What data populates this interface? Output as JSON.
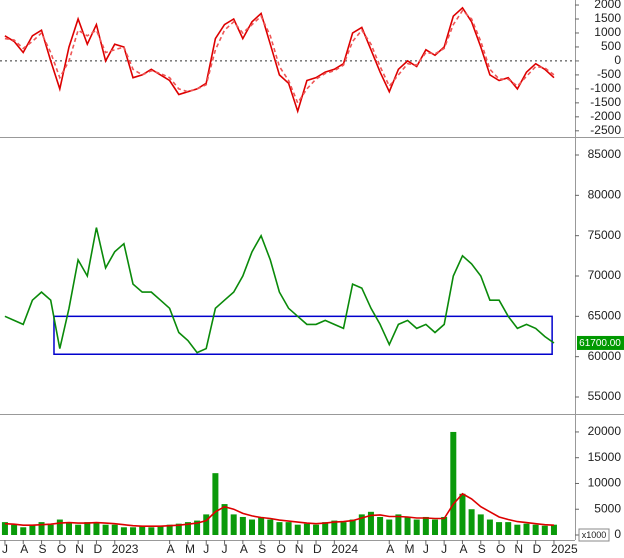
{
  "chart_data": [
    {
      "type": "line",
      "x": [
        0,
        0.5,
        1,
        1.5,
        2,
        2.5,
        3,
        3.5,
        4,
        4.5,
        5,
        5.5,
        6,
        6.5,
        7,
        7.5,
        8,
        8.5,
        9,
        9.5,
        10,
        10.5,
        11,
        11.5,
        12,
        12.5,
        13,
        13.5,
        14,
        14.5,
        15,
        15.5,
        16,
        16.5,
        17,
        17.5,
        18,
        18.5,
        19,
        19.5,
        20,
        20.5,
        21,
        21.5,
        22,
        22.5,
        23,
        23.5,
        24,
        24.5,
        25,
        25.5,
        26,
        26.5,
        27,
        27.5,
        28,
        28.5,
        29,
        29.5,
        30
      ],
      "xlim": [
        -0.27,
        31.15
      ],
      "ylim": [
        -2650,
        2180
      ],
      "yticks": [
        2000,
        1500,
        1000,
        500,
        0,
        -500,
        -1000,
        -1500,
        -2000,
        -2500
      ],
      "reference_line": 0,
      "series": [
        {
          "color": "#dd0000",
          "values": [
            900,
            700,
            300,
            900,
            1100,
            0,
            -1000,
            500,
            1500,
            600,
            1300,
            0,
            600,
            500,
            -600,
            -500,
            -300,
            -500,
            -700,
            -1200,
            -1100,
            -1000,
            -800,
            800,
            1300,
            1500,
            800,
            1400,
            1700,
            600,
            -500,
            -800,
            -1800,
            -700,
            -600,
            -400,
            -300,
            -100,
            1000,
            1200,
            400,
            -400,
            -1100,
            -300,
            0,
            -200,
            400,
            200,
            500,
            1600,
            1900,
            1400,
            500,
            -500,
            -700,
            -600,
            -1000,
            -400,
            -100,
            -300,
            -600
          ]
        },
        {
          "color": "#ee5555",
          "dashed": true,
          "values": [
            800,
            750,
            450,
            700,
            1000,
            300,
            -600,
            0,
            1100,
            900,
            1100,
            300,
            400,
            500,
            -300,
            -500,
            -350,
            -450,
            -600,
            -1000,
            -1100,
            -1000,
            -850,
            400,
            1100,
            1400,
            1000,
            1300,
            1600,
            900,
            -200,
            -700,
            -1500,
            -1000,
            -650,
            -450,
            -350,
            -150,
            700,
            1100,
            600,
            -200,
            -900,
            -500,
            -100,
            -150,
            300,
            250,
            450,
            1300,
            1800,
            1500,
            700,
            -300,
            -650,
            -650,
            -900,
            -550,
            -200,
            -250,
            -500
          ]
        }
      ]
    },
    {
      "type": "line",
      "x": [
        0,
        0.5,
        1,
        1.5,
        2,
        2.5,
        3,
        3.5,
        4,
        4.5,
        5,
        5.5,
        6,
        6.5,
        7,
        7.5,
        8,
        8.5,
        9,
        9.5,
        10,
        10.5,
        11,
        11.5,
        12,
        12.5,
        13,
        13.5,
        14,
        14.5,
        15,
        15.5,
        16,
        16.5,
        17,
        17.5,
        18,
        18.5,
        19,
        19.5,
        20,
        20.5,
        21,
        21.5,
        22,
        22.5,
        23,
        23.5,
        24,
        24.5,
        25,
        25.5,
        26,
        26.5,
        27,
        27.5,
        28,
        28.5,
        29,
        29.5,
        30
      ],
      "xlim": [
        -0.27,
        31.15
      ],
      "ylim": [
        53140,
        86860
      ],
      "yticks": [
        85000,
        80000,
        75000,
        70000,
        65000,
        60000,
        55000
      ],
      "series": [
        {
          "color": "#0a8a0a",
          "values": [
            65000,
            64500,
            64000,
            67000,
            68000,
            67000,
            61000,
            66000,
            72000,
            70000,
            76000,
            71000,
            73000,
            74000,
            69000,
            68000,
            68000,
            67000,
            66000,
            63000,
            62000,
            60500,
            61000,
            66000,
            67000,
            68000,
            70000,
            73000,
            75000,
            72000,
            68000,
            66000,
            65000,
            64000,
            64000,
            64500,
            64000,
            63500,
            69000,
            68500,
            66000,
            64000,
            61500,
            64000,
            64500,
            63500,
            64000,
            63000,
            64000,
            70000,
            72500,
            71500,
            70000,
            67000,
            67000,
            65000,
            63500,
            64000,
            63500,
            62500,
            61700
          ]
        }
      ],
      "box": {
        "x": [
          2.68,
          29.9
        ],
        "y": [
          60300,
          65000
        ],
        "color": "#0000cc"
      },
      "last_price": {
        "value": 61700,
        "label": "61700.00",
        "color": "#009900"
      }
    },
    {
      "type": "bar",
      "x": [
        0,
        0.5,
        1,
        1.5,
        2,
        2.5,
        3,
        3.5,
        4,
        4.5,
        5,
        5.5,
        6,
        6.5,
        7,
        7.5,
        8,
        8.5,
        9,
        9.5,
        10,
        10.5,
        11,
        11.5,
        12,
        12.5,
        13,
        13.5,
        14,
        14.5,
        15,
        15.5,
        16,
        16.5,
        17,
        17.5,
        18,
        18.5,
        19,
        19.5,
        20,
        20.5,
        21,
        21.5,
        22,
        22.5,
        23,
        23.5,
        24,
        24.5,
        25,
        25.5,
        26,
        26.5,
        27,
        27.5,
        28,
        28.5,
        29,
        29.5,
        30
      ],
      "xlim": [
        -0.27,
        31.15
      ],
      "xticks": [
        {
          "value": 0,
          "label": "J"
        },
        {
          "value": 1,
          "label": "A"
        },
        {
          "value": 2,
          "label": "S"
        },
        {
          "value": 3,
          "label": "O"
        },
        {
          "value": 4,
          "label": "N"
        },
        {
          "value": 5,
          "label": "D"
        },
        {
          "value": 6,
          "label": "2023"
        },
        {
          "value": 9,
          "label": "A"
        },
        {
          "value": 10,
          "label": "M"
        },
        {
          "value": 11,
          "label": "J"
        },
        {
          "value": 12,
          "label": "J"
        },
        {
          "value": 13,
          "label": "A"
        },
        {
          "value": 14,
          "label": "S"
        },
        {
          "value": 15,
          "label": "O"
        },
        {
          "value": 16,
          "label": "N"
        },
        {
          "value": 17,
          "label": "D"
        },
        {
          "value": 18,
          "label": "2024"
        },
        {
          "value": 21,
          "label": "A"
        },
        {
          "value": 22,
          "label": "M"
        },
        {
          "value": 23,
          "label": "J"
        },
        {
          "value": 24,
          "label": "J"
        },
        {
          "value": 25,
          "label": "A"
        },
        {
          "value": 26,
          "label": "S"
        },
        {
          "value": 27,
          "label": "O"
        },
        {
          "value": 28,
          "label": "N"
        },
        {
          "value": 29,
          "label": "D"
        },
        {
          "value": 30,
          "label": "2025"
        }
      ],
      "ylim": [
        -970,
        22900
      ],
      "yticks": [
        20000,
        15000,
        10000,
        5000,
        0
      ],
      "unit_label": "x1000",
      "series": [
        {
          "type": "bar",
          "color": "#0a9a0a",
          "values": [
            2500,
            2000,
            1500,
            2000,
            2500,
            2000,
            3000,
            2500,
            2000,
            2500,
            2500,
            2000,
            2000,
            1500,
            1500,
            1800,
            1500,
            1800,
            2000,
            2200,
            2500,
            2800,
            4000,
            12000,
            6000,
            4000,
            3500,
            3000,
            3500,
            3000,
            2500,
            2500,
            2000,
            2200,
            2000,
            2500,
            2800,
            2500,
            3000,
            4000,
            4500,
            3500,
            3000,
            4000,
            3500,
            3000,
            3500,
            3000,
            3500,
            20000,
            8000,
            5000,
            4000,
            3000,
            2500,
            2500,
            2000,
            2200,
            2000,
            1800,
            2000
          ]
        },
        {
          "type": "line",
          "color": "#dd0000",
          "values": [
            2200,
            2100,
            1900,
            1900,
            2000,
            2100,
            2300,
            2400,
            2300,
            2300,
            2400,
            2300,
            2200,
            2000,
            1800,
            1700,
            1700,
            1700,
            1800,
            1900,
            2100,
            2300,
            2800,
            4500,
            5500,
            5000,
            4200,
            3700,
            3400,
            3200,
            2900,
            2700,
            2500,
            2300,
            2200,
            2300,
            2500,
            2600,
            2800,
            3300,
            3800,
            3900,
            3600,
            3600,
            3500,
            3300,
            3300,
            3200,
            3200,
            6000,
            8000,
            7000,
            5500,
            4500,
            3500,
            3000,
            2600,
            2400,
            2200,
            2000,
            1900
          ]
        }
      ]
    }
  ]
}
